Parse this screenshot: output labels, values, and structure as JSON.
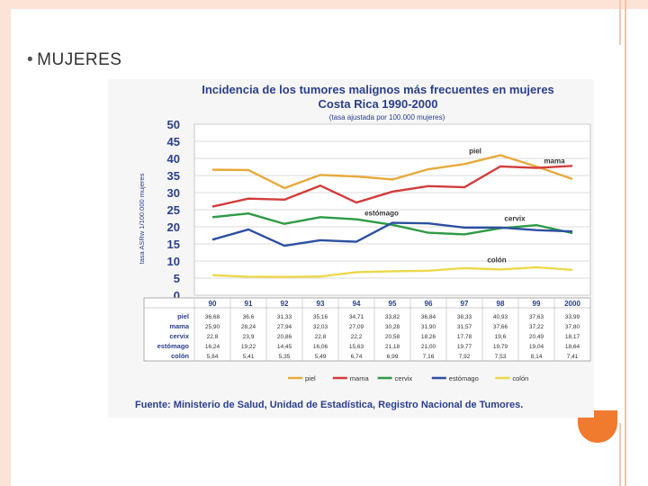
{
  "slide": {
    "bullet": "•",
    "heading": "MUJERES"
  },
  "colors": {
    "piel": "#e8a93a",
    "mama": "#d33c3c",
    "cervix": "#2e9a45",
    "estomago": "#2d4fa1",
    "colon": "#ecd84a",
    "accent": "#f07a2e"
  },
  "chart_data": {
    "type": "line",
    "title": "Incidencia de los tumores malignos más frecuentes en mujeres",
    "subtitle": "Costa Rica 1990-2000",
    "note": "(tasa ajustada por 100.000 mujeres)",
    "ylabel": "tasa ASRw 1/100.000 mujeres",
    "ylim": [
      0,
      50
    ],
    "yticks": [
      "0",
      "5",
      "10",
      "15",
      "20",
      "25",
      "30",
      "35",
      "40",
      "45",
      "50"
    ],
    "categories": [
      "90",
      "91",
      "92",
      "93",
      "94",
      "95",
      "96",
      "97",
      "98",
      "99",
      "2000"
    ],
    "series": [
      {
        "name": "piel",
        "key": "piel",
        "values": [
          36.68,
          36.6,
          31.33,
          35.16,
          34.71,
          33.82,
          36.84,
          38.33,
          40.93,
          37.63,
          33.99
        ],
        "table_values": [
          "36,68",
          "36,6",
          "31,33",
          "35,16",
          "34,71",
          "33,82",
          "36,84",
          "38,33",
          "40,93",
          "37,63",
          "33,99"
        ]
      },
      {
        "name": "mama",
        "key": "mama",
        "values": [
          25.9,
          28.24,
          27.94,
          32.03,
          27.09,
          30.28,
          31.9,
          31.57,
          37.66,
          37.22,
          37.8
        ],
        "table_values": [
          "25,90",
          "28,24",
          "27,94",
          "32,03",
          "27,09",
          "30,28",
          "31,90",
          "31,57",
          "37,66",
          "37,22",
          "37,80"
        ]
      },
      {
        "name": "cervix",
        "key": "cervix",
        "values": [
          22.8,
          23.9,
          20.86,
          22.8,
          22.2,
          20.58,
          18.26,
          17.78,
          19.6,
          20.49,
          18.17
        ],
        "table_values": [
          "22,8",
          "23,9",
          "20,86",
          "22,8",
          "22,2",
          "20,58",
          "18,26",
          "17,78",
          "19,6",
          "20,49",
          "18,17"
        ]
      },
      {
        "name": "estómago",
        "key": "estomago",
        "values": [
          16.24,
          19.22,
          14.45,
          16.06,
          15.63,
          21.18,
          21.0,
          19.77,
          19.79,
          19.04,
          18.64
        ],
        "table_values": [
          "16,24",
          "19,22",
          "14,45",
          "16,06",
          "15,63",
          "21,18",
          "21,00",
          "19,77",
          "19,79",
          "19,04",
          "18,64"
        ]
      },
      {
        "name": "colón",
        "key": "colon",
        "values": [
          5.84,
          5.41,
          5.35,
          5.49,
          6.74,
          6.99,
          7.16,
          7.92,
          7.53,
          8.14,
          7.41
        ],
        "table_values": [
          "5,84",
          "5,41",
          "5,35",
          "5,49",
          "6,74",
          "6,99",
          "7,16",
          "7,92",
          "7,53",
          "8,14",
          "7,41"
        ]
      }
    ],
    "line_labels": [
      {
        "key": "piel",
        "text": "piel"
      },
      {
        "key": "mama",
        "text": "mama"
      },
      {
        "key": "estomago",
        "text": "estómago"
      },
      {
        "key": "cervix",
        "text": "cervix"
      },
      {
        "key": "colon",
        "text": "colón"
      }
    ],
    "legend_position": "bottom",
    "grid": true,
    "source": "Fuente: Ministerio de Salud, Unidad de Estadística, Registro Nacional de Tumores."
  }
}
